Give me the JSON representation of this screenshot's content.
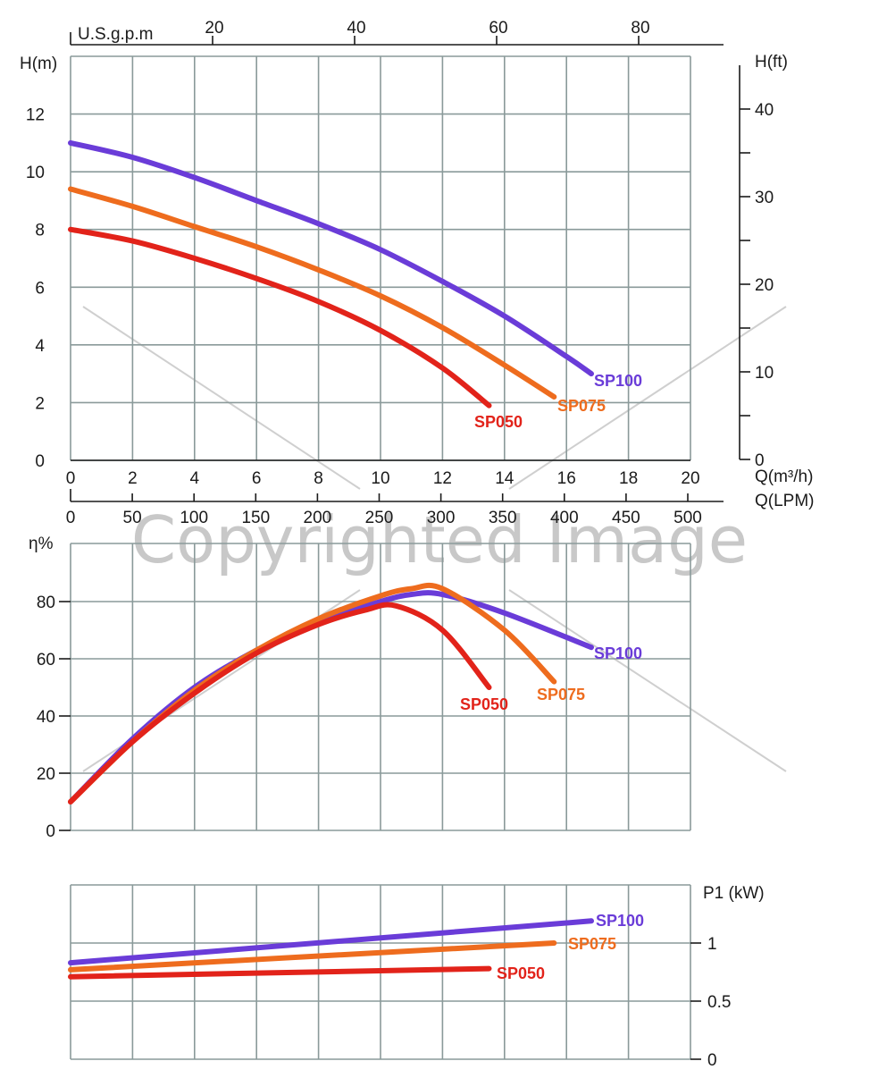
{
  "colors": {
    "SP100": "#6a3cd8",
    "SP075": "#ee6c1e",
    "SP050": "#e2231a",
    "grid": "#8a9a9a"
  },
  "watermark": "Copyrighted Image",
  "chart_data": [
    {
      "type": "line",
      "panel": "head",
      "ylabel": "H(m)",
      "ylabel_right": "H(ft)",
      "xlabel": "Q(m³/h)",
      "xlabel_lpm": "Q(LPM)",
      "xlabel_gpm": "U.S.g.p.m",
      "xlim": [
        0,
        20
      ],
      "ylim": [
        0,
        14
      ],
      "yticks": [
        0,
        2,
        4,
        6,
        8,
        10,
        12
      ],
      "xticks": [
        0,
        2,
        4,
        6,
        8,
        10,
        12,
        14,
        16,
        18,
        20
      ],
      "lpm_ticks": [
        0,
        50,
        100,
        150,
        200,
        250,
        300,
        350,
        400,
        450,
        500
      ],
      "gpm_ticks": [
        20,
        40,
        60,
        80
      ],
      "ft_ticks": [
        0,
        10,
        20,
        30,
        40
      ],
      "grid": true,
      "series": [
        {
          "name": "SP100",
          "x": [
            0,
            2,
            4,
            6,
            8,
            10,
            12,
            14,
            16,
            16.8
          ],
          "y": [
            11,
            10.5,
            9.8,
            9.0,
            8.2,
            7.3,
            6.2,
            5.0,
            3.6,
            3.0
          ]
        },
        {
          "name": "SP075",
          "x": [
            0,
            2,
            4,
            6,
            8,
            10,
            12,
            14,
            15.6
          ],
          "y": [
            9.4,
            8.8,
            8.1,
            7.4,
            6.6,
            5.7,
            4.6,
            3.3,
            2.2
          ]
        },
        {
          "name": "SP050",
          "x": [
            0,
            2,
            4,
            6,
            8,
            10,
            12,
            13.5
          ],
          "y": [
            8.0,
            7.6,
            7.0,
            6.3,
            5.5,
            4.5,
            3.2,
            1.9
          ]
        }
      ]
    },
    {
      "type": "line",
      "panel": "efficiency",
      "ylabel": "η%",
      "xlim": [
        0,
        20
      ],
      "ylim": [
        0,
        90
      ],
      "yticks": [
        0,
        20,
        40,
        60,
        80
      ],
      "grid": true,
      "series": [
        {
          "name": "SP100",
          "x": [
            0,
            2,
            4,
            6,
            8,
            10,
            11,
            12,
            14,
            16.8
          ],
          "y": [
            10,
            32,
            50,
            63,
            73,
            80,
            82.5,
            82.5,
            76,
            64
          ]
        },
        {
          "name": "SP075",
          "x": [
            0,
            2,
            4,
            6,
            8,
            10,
            11,
            12,
            14,
            15.6
          ],
          "y": [
            10,
            31,
            49,
            63,
            74,
            82,
            84.5,
            84.5,
            70,
            52
          ]
        },
        {
          "name": "SP050",
          "x": [
            0,
            2,
            4,
            6,
            8,
            9.5,
            10.5,
            12,
            13.5
          ],
          "y": [
            10,
            31,
            48,
            62,
            72,
            77,
            78.5,
            70,
            50
          ]
        }
      ]
    },
    {
      "type": "line",
      "panel": "power",
      "ylabel": "P1 (kW)",
      "xlim": [
        0,
        20
      ],
      "ylim": [
        0,
        1.5
      ],
      "yticks": [
        0,
        0.5,
        1
      ],
      "grid": true,
      "series": [
        {
          "name": "SP100",
          "x": [
            0,
            16.8
          ],
          "y": [
            0.83,
            1.19
          ]
        },
        {
          "name": "SP075",
          "x": [
            0,
            15.6
          ],
          "y": [
            0.77,
            1.0
          ]
        },
        {
          "name": "SP050",
          "x": [
            0,
            13.5
          ],
          "y": [
            0.71,
            0.78
          ]
        }
      ]
    }
  ]
}
